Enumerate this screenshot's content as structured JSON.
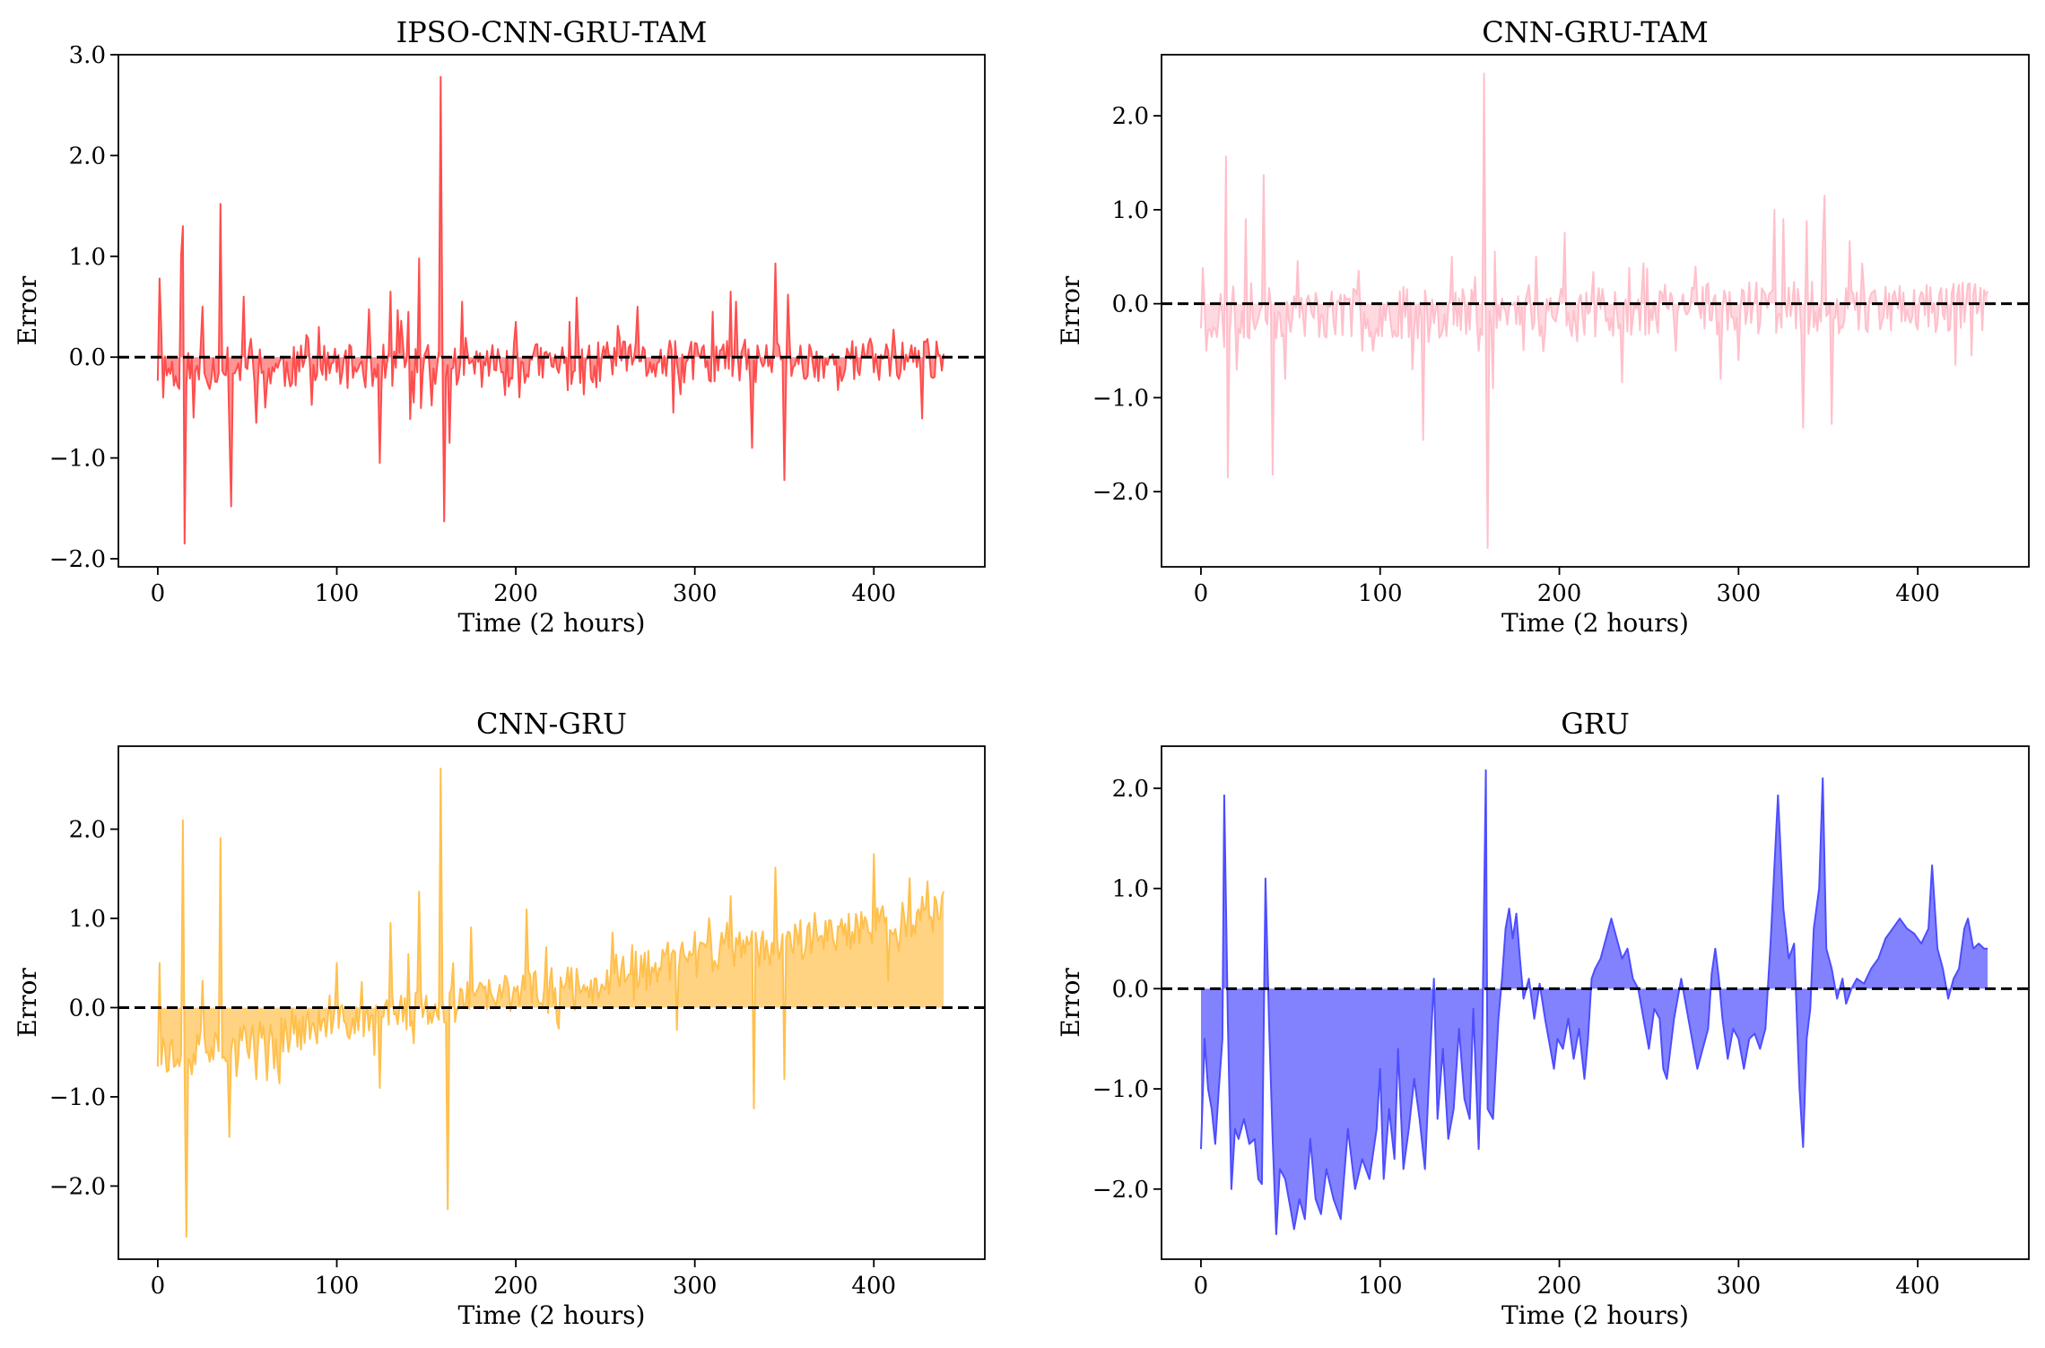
{
  "figure": {
    "rows": 2,
    "cols": 2
  },
  "chart_data": [
    {
      "type": "area",
      "title": "IPSO-CNN-GRU-TAM",
      "xlabel": "Time (2 hours)",
      "ylabel": "Error",
      "color": "#ff4d4d",
      "fill_alpha": 0.6,
      "xlim": [
        -22,
        462
      ],
      "ylim": [
        -2.08,
        3.0
      ],
      "xticks": [
        0,
        100,
        200,
        300,
        400
      ],
      "xtick_labels": [
        "0",
        "100",
        "200",
        "300",
        "400"
      ],
      "yticks": [
        -2.0,
        -1.0,
        0.0,
        1.0,
        2.0,
        3.0
      ],
      "ytick_labels": [
        "−2.0",
        "−1.0",
        "0.0",
        "1.0",
        "2.0",
        "3.0"
      ],
      "zero_line": true,
      "x_max": 439,
      "amplitude": 0.22,
      "drift": 0,
      "seed": 11,
      "spikes": [
        [
          1,
          0.78
        ],
        [
          3,
          -0.4
        ],
        [
          13,
          1.0
        ],
        [
          14,
          1.3
        ],
        [
          15,
          -1.85
        ],
        [
          20,
          -0.6
        ],
        [
          25,
          0.5
        ],
        [
          35,
          1.52
        ],
        [
          40,
          -0.7
        ],
        [
          41,
          -1.48
        ],
        [
          48,
          0.6
        ],
        [
          60,
          -0.5
        ],
        [
          90,
          0.3
        ],
        [
          124,
          -1.05
        ],
        [
          130,
          0.65
        ],
        [
          140,
          0.45
        ],
        [
          143,
          -0.45
        ],
        [
          146,
          0.98
        ],
        [
          158,
          2.78
        ],
        [
          160,
          -1.63
        ],
        [
          163,
          -0.85
        ],
        [
          170,
          0.55
        ],
        [
          200,
          0.35
        ],
        [
          230,
          0.35
        ],
        [
          245,
          -0.3
        ],
        [
          268,
          0.5
        ],
        [
          288,
          -0.55
        ],
        [
          310,
          0.45
        ],
        [
          320,
          0.65
        ],
        [
          323,
          0.55
        ],
        [
          332,
          -0.9
        ],
        [
          345,
          0.93
        ],
        [
          350,
          -1.22
        ],
        [
          352,
          0.62
        ]
      ]
    },
    {
      "type": "area",
      "title": "CNN-GRU-TAM",
      "xlabel": "Time (2 hours)",
      "ylabel": "Error",
      "color": "#ffc0cb",
      "fill_alpha": 0.6,
      "xlim": [
        -22,
        462
      ],
      "ylim": [
        -2.8,
        2.65
      ],
      "xticks": [
        0,
        100,
        200,
        300,
        400
      ],
      "xtick_labels": [
        "0",
        "100",
        "200",
        "300",
        "400"
      ],
      "yticks": [
        -2.0,
        -1.0,
        0.0,
        1.0,
        2.0
      ],
      "ytick_labels": [
        "−2.0",
        "−1.0",
        "0.0",
        "1.0",
        "2.0"
      ],
      "zero_line": true,
      "x_max": 439,
      "amplitude": 0.28,
      "drift": 0,
      "seed": 23,
      "spikes": [
        [
          1,
          0.38
        ],
        [
          3,
          -0.5
        ],
        [
          14,
          1.57
        ],
        [
          15,
          -1.85
        ],
        [
          20,
          -0.7
        ],
        [
          25,
          0.9
        ],
        [
          35,
          1.37
        ],
        [
          40,
          -1.82
        ],
        [
          47,
          -0.8
        ],
        [
          90,
          -0.5
        ],
        [
          118,
          -0.7
        ],
        [
          124,
          -1.45
        ],
        [
          140,
          0.5
        ],
        [
          158,
          2.45
        ],
        [
          160,
          -2.6
        ],
        [
          163,
          -0.9
        ],
        [
          187,
          0.5
        ],
        [
          210,
          -0.4
        ],
        [
          220,
          -0.35
        ],
        [
          265,
          -0.5
        ],
        [
          290,
          -0.8
        ],
        [
          300,
          -0.6
        ],
        [
          320,
          1.0
        ],
        [
          325,
          0.9
        ],
        [
          336,
          -1.32
        ],
        [
          338,
          0.88
        ],
        [
          348,
          1.15
        ],
        [
          352,
          -1.28
        ],
        [
          410,
          0.3
        ],
        [
          410,
          -0.3
        ],
        [
          430,
          -0.55
        ],
        [
          440,
          0.2
        ]
      ]
    },
    {
      "type": "area",
      "title": "CNN-GRU",
      "xlabel": "Time (2 hours)",
      "ylabel": "Error",
      "color": "#ffc04d",
      "fill_alpha": 0.7,
      "xlim": [
        -22,
        462
      ],
      "ylim": [
        -2.82,
        2.93
      ],
      "xticks": [
        0,
        100,
        200,
        300,
        400
      ],
      "xtick_labels": [
        "0",
        "100",
        "200",
        "300",
        "400"
      ],
      "yticks": [
        -2.0,
        -1.0,
        0.0,
        1.0,
        2.0
      ],
      "ytick_labels": [
        "−2.0",
        "−1.0",
        "0.0",
        "1.0",
        "2.0"
      ],
      "zero_line": true,
      "x_max": 439,
      "amplitude": 0.22,
      "drift": 1,
      "seed": 37,
      "spikes": [
        [
          1,
          0.5
        ],
        [
          3,
          -0.35
        ],
        [
          14,
          2.1
        ],
        [
          16,
          -2.57
        ],
        [
          25,
          0.3
        ],
        [
          35,
          1.9
        ],
        [
          40,
          -1.45
        ],
        [
          55,
          -0.8
        ],
        [
          68,
          -0.85
        ],
        [
          100,
          0.5
        ],
        [
          124,
          -0.9
        ],
        [
          130,
          0.95
        ],
        [
          140,
          0.6
        ],
        [
          143,
          -0.4
        ],
        [
          146,
          1.3
        ],
        [
          158,
          2.68
        ],
        [
          162,
          -2.26
        ],
        [
          165,
          0.5
        ],
        [
          175,
          0.9
        ],
        [
          206,
          1.1
        ],
        [
          265,
          0.7
        ],
        [
          290,
          -0.25
        ],
        [
          300,
          0.85
        ],
        [
          320,
          1.25
        ],
        [
          333,
          -1.13
        ],
        [
          345,
          1.57
        ],
        [
          350,
          -0.8
        ],
        [
          352,
          0.85
        ],
        [
          400,
          1.72
        ],
        [
          408,
          0.3
        ],
        [
          420,
          1.45
        ],
        [
          439,
          1.3
        ]
      ]
    },
    {
      "type": "area",
      "title": "GRU",
      "xlabel": "Time (2 hours)",
      "ylabel": "Error",
      "color": "#4d4dff",
      "fill_alpha": 0.7,
      "xlim": [
        -22,
        462
      ],
      "ylim": [
        -2.7,
        2.42
      ],
      "xticks": [
        0,
        100,
        200,
        300,
        400
      ],
      "xtick_labels": [
        "0",
        "100",
        "200",
        "300",
        "400"
      ],
      "yticks": [
        -2.0,
        -1.0,
        0.0,
        1.0,
        2.0
      ],
      "ytick_labels": [
        "−2.0",
        "−1.0",
        "0.0",
        "1.0",
        "2.0"
      ],
      "zero_line": true,
      "x_max": 439,
      "points": [
        [
          0,
          -1.6
        ],
        [
          2,
          -0.5
        ],
        [
          4,
          -1.0
        ],
        [
          6,
          -1.2
        ],
        [
          8,
          -1.55
        ],
        [
          10,
          -1.0
        ],
        [
          12,
          -0.5
        ],
        [
          13,
          1.93
        ],
        [
          15,
          -0.3
        ],
        [
          17,
          -2.0
        ],
        [
          19,
          -1.4
        ],
        [
          21,
          -1.5
        ],
        [
          24,
          -1.3
        ],
        [
          27,
          -1.55
        ],
        [
          30,
          -1.5
        ],
        [
          32,
          -1.9
        ],
        [
          34,
          -1.95
        ],
        [
          36,
          1.1
        ],
        [
          38,
          -0.35
        ],
        [
          40,
          -1.5
        ],
        [
          42,
          -2.45
        ],
        [
          44,
          -1.8
        ],
        [
          47,
          -1.9
        ],
        [
          50,
          -2.2
        ],
        [
          52,
          -2.4
        ],
        [
          55,
          -2.1
        ],
        [
          58,
          -2.3
        ],
        [
          61,
          -1.5
        ],
        [
          64,
          -2.1
        ],
        [
          67,
          -2.25
        ],
        [
          70,
          -1.8
        ],
        [
          74,
          -2.1
        ],
        [
          78,
          -2.3
        ],
        [
          82,
          -1.4
        ],
        [
          86,
          -2.0
        ],
        [
          90,
          -1.7
        ],
        [
          94,
          -1.9
        ],
        [
          98,
          -1.4
        ],
        [
          100,
          -0.8
        ],
        [
          102,
          -1.9
        ],
        [
          105,
          -1.2
        ],
        [
          108,
          -1.7
        ],
        [
          110,
          -0.6
        ],
        [
          113,
          -1.8
        ],
        [
          116,
          -1.4
        ],
        [
          119,
          -0.9
        ],
        [
          122,
          -1.3
        ],
        [
          125,
          -1.8
        ],
        [
          127,
          -1.0
        ],
        [
          130,
          0.1
        ],
        [
          132,
          -1.3
        ],
        [
          135,
          -0.6
        ],
        [
          138,
          -1.5
        ],
        [
          141,
          -1.2
        ],
        [
          144,
          -0.4
        ],
        [
          147,
          -1.1
        ],
        [
          150,
          -1.3
        ],
        [
          152,
          -0.2
        ],
        [
          155,
          -1.6
        ],
        [
          157,
          -0.5
        ],
        [
          159,
          2.18
        ],
        [
          160,
          -1.2
        ],
        [
          163,
          -1.3
        ],
        [
          166,
          -0.3
        ],
        [
          168,
          0.1
        ],
        [
          170,
          0.6
        ],
        [
          172,
          0.8
        ],
        [
          174,
          0.5
        ],
        [
          176,
          0.75
        ],
        [
          178,
          0.3
        ],
        [
          180,
          -0.1
        ],
        [
          183,
          0.1
        ],
        [
          186,
          -0.3
        ],
        [
          189,
          0.05
        ],
        [
          192,
          -0.3
        ],
        [
          195,
          -0.6
        ],
        [
          197,
          -0.8
        ],
        [
          199,
          -0.5
        ],
        [
          202,
          -0.6
        ],
        [
          205,
          -0.3
        ],
        [
          208,
          -0.7
        ],
        [
          211,
          -0.4
        ],
        [
          214,
          -0.9
        ],
        [
          216,
          -0.5
        ],
        [
          218,
          0.1
        ],
        [
          220,
          0.2
        ],
        [
          223,
          0.3
        ],
        [
          226,
          0.5
        ],
        [
          229,
          0.7
        ],
        [
          232,
          0.5
        ],
        [
          235,
          0.3
        ],
        [
          238,
          0.4
        ],
        [
          241,
          0.1
        ],
        [
          244,
          0.0
        ],
        [
          247,
          -0.3
        ],
        [
          250,
          -0.6
        ],
        [
          253,
          -0.2
        ],
        [
          256,
          -0.3
        ],
        [
          258,
          -0.8
        ],
        [
          260,
          -0.9
        ],
        [
          262,
          -0.6
        ],
        [
          264,
          -0.3
        ],
        [
          266,
          -0.1
        ],
        [
          268,
          0.1
        ],
        [
          271,
          -0.2
        ],
        [
          274,
          -0.5
        ],
        [
          277,
          -0.8
        ],
        [
          280,
          -0.6
        ],
        [
          283,
          -0.4
        ],
        [
          285,
          0.15
        ],
        [
          287,
          0.4
        ],
        [
          289,
          0.1
        ],
        [
          291,
          -0.3
        ],
        [
          294,
          -0.7
        ],
        [
          297,
          -0.4
        ],
        [
          300,
          -0.5
        ],
        [
          303,
          -0.8
        ],
        [
          306,
          -0.5
        ],
        [
          309,
          -0.45
        ],
        [
          312,
          -0.6
        ],
        [
          315,
          -0.4
        ],
        [
          318,
          0.5
        ],
        [
          322,
          1.93
        ],
        [
          325,
          0.8
        ],
        [
          328,
          0.3
        ],
        [
          331,
          0.45
        ],
        [
          334,
          -1.0
        ],
        [
          336,
          -1.58
        ],
        [
          338,
          -0.5
        ],
        [
          340,
          -0.2
        ],
        [
          342,
          0.6
        ],
        [
          345,
          1.0
        ],
        [
          347,
          2.1
        ],
        [
          349,
          0.4
        ],
        [
          352,
          0.2
        ],
        [
          355,
          -0.1
        ],
        [
          358,
          0.1
        ],
        [
          360,
          -0.15
        ],
        [
          363,
          0.0
        ],
        [
          366,
          0.1
        ],
        [
          370,
          0.05
        ],
        [
          374,
          0.2
        ],
        [
          378,
          0.3
        ],
        [
          382,
          0.5
        ],
        [
          386,
          0.6
        ],
        [
          390,
          0.7
        ],
        [
          394,
          0.6
        ],
        [
          398,
          0.55
        ],
        [
          402,
          0.45
        ],
        [
          406,
          0.6
        ],
        [
          408,
          1.23
        ],
        [
          411,
          0.4
        ],
        [
          414,
          0.2
        ],
        [
          417,
          -0.1
        ],
        [
          420,
          0.1
        ],
        [
          423,
          0.2
        ],
        [
          426,
          0.6
        ],
        [
          428,
          0.7
        ],
        [
          431,
          0.4
        ],
        [
          434,
          0.45
        ],
        [
          437,
          0.4
        ],
        [
          439,
          0.4
        ]
      ]
    }
  ]
}
